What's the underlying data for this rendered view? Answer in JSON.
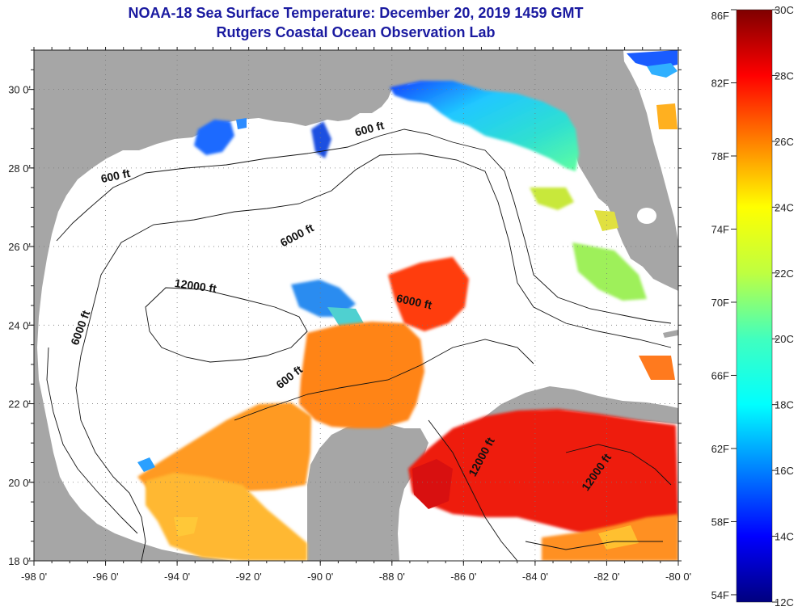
{
  "header": {
    "title_line1": "NOAA-18 Sea Surface Temperature:  December 20, 2019 1459 GMT",
    "title_line2": "Rutgers Coastal Ocean Observation Lab"
  },
  "map": {
    "lon_min": -98,
    "lon_max": -80,
    "lat_min": 18,
    "lat_max": 31,
    "lon_ticks": [
      {
        "value": -98,
        "label": "-98 0'"
      },
      {
        "value": -96,
        "label": "-96 0'"
      },
      {
        "value": -94,
        "label": "-94 0'"
      },
      {
        "value": -92,
        "label": "-92 0'"
      },
      {
        "value": -90,
        "label": "-90 0'"
      },
      {
        "value": -88,
        "label": "-88 0'"
      },
      {
        "value": -86,
        "label": "-86 0'"
      },
      {
        "value": -84,
        "label": "-84 0'"
      },
      {
        "value": -82,
        "label": "-82 0'"
      },
      {
        "value": -80,
        "label": "-80 0'"
      }
    ],
    "lat_ticks": [
      {
        "value": 18,
        "label": "18 0'"
      },
      {
        "value": 20,
        "label": "20 0'"
      },
      {
        "value": 22,
        "label": "22 0'"
      },
      {
        "value": 24,
        "label": "24 0'"
      },
      {
        "value": 26,
        "label": "26 0'"
      },
      {
        "value": 28,
        "label": "28 0'"
      },
      {
        "value": 30,
        "label": "30 0'"
      }
    ],
    "contour_labels": [
      {
        "text": "600 ft",
        "lon": -95.7,
        "lat": 27.7,
        "angle": -12
      },
      {
        "text": "600 ft",
        "lon": -88.6,
        "lat": 28.9,
        "angle": -15
      },
      {
        "text": "6000 ft",
        "lon": -90.6,
        "lat": 26.2,
        "angle": -28
      },
      {
        "text": "12000 ft",
        "lon": -93.5,
        "lat": 24.9,
        "angle": 8
      },
      {
        "text": "6000 ft",
        "lon": -96.6,
        "lat": 23.9,
        "angle": -70
      },
      {
        "text": "6000 ft",
        "lon": -87.4,
        "lat": 24.5,
        "angle": 12
      },
      {
        "text": "600 ft",
        "lon": -90.8,
        "lat": 22.6,
        "angle": -38
      },
      {
        "text": "12000 ft",
        "lon": -85.4,
        "lat": 20.6,
        "angle": -62
      },
      {
        "text": "12000 ft",
        "lon": -82.2,
        "lat": 20.2,
        "angle": -55
      }
    ]
  },
  "colorbar": {
    "celsius_labels": [
      "30C",
      "28C",
      "26C",
      "24C",
      "22C",
      "20C",
      "18C",
      "16C",
      "14C",
      "12C"
    ],
    "fahrenheit_labels": [
      "86F",
      "82F",
      "78F",
      "74F",
      "70F",
      "66F",
      "62F",
      "58F",
      "54F"
    ],
    "colors": {
      "land": "#a6a6a6",
      "ocean_nodata": "#ffffff",
      "c12": "#00007f",
      "c14": "#0000ff",
      "c16": "#0080ff",
      "c18": "#00ffff",
      "c20": "#40ffbf",
      "c22": "#bfff40",
      "c24": "#ffff00",
      "c26": "#ff8000",
      "c28": "#ff0000",
      "c30": "#7f0000"
    }
  }
}
